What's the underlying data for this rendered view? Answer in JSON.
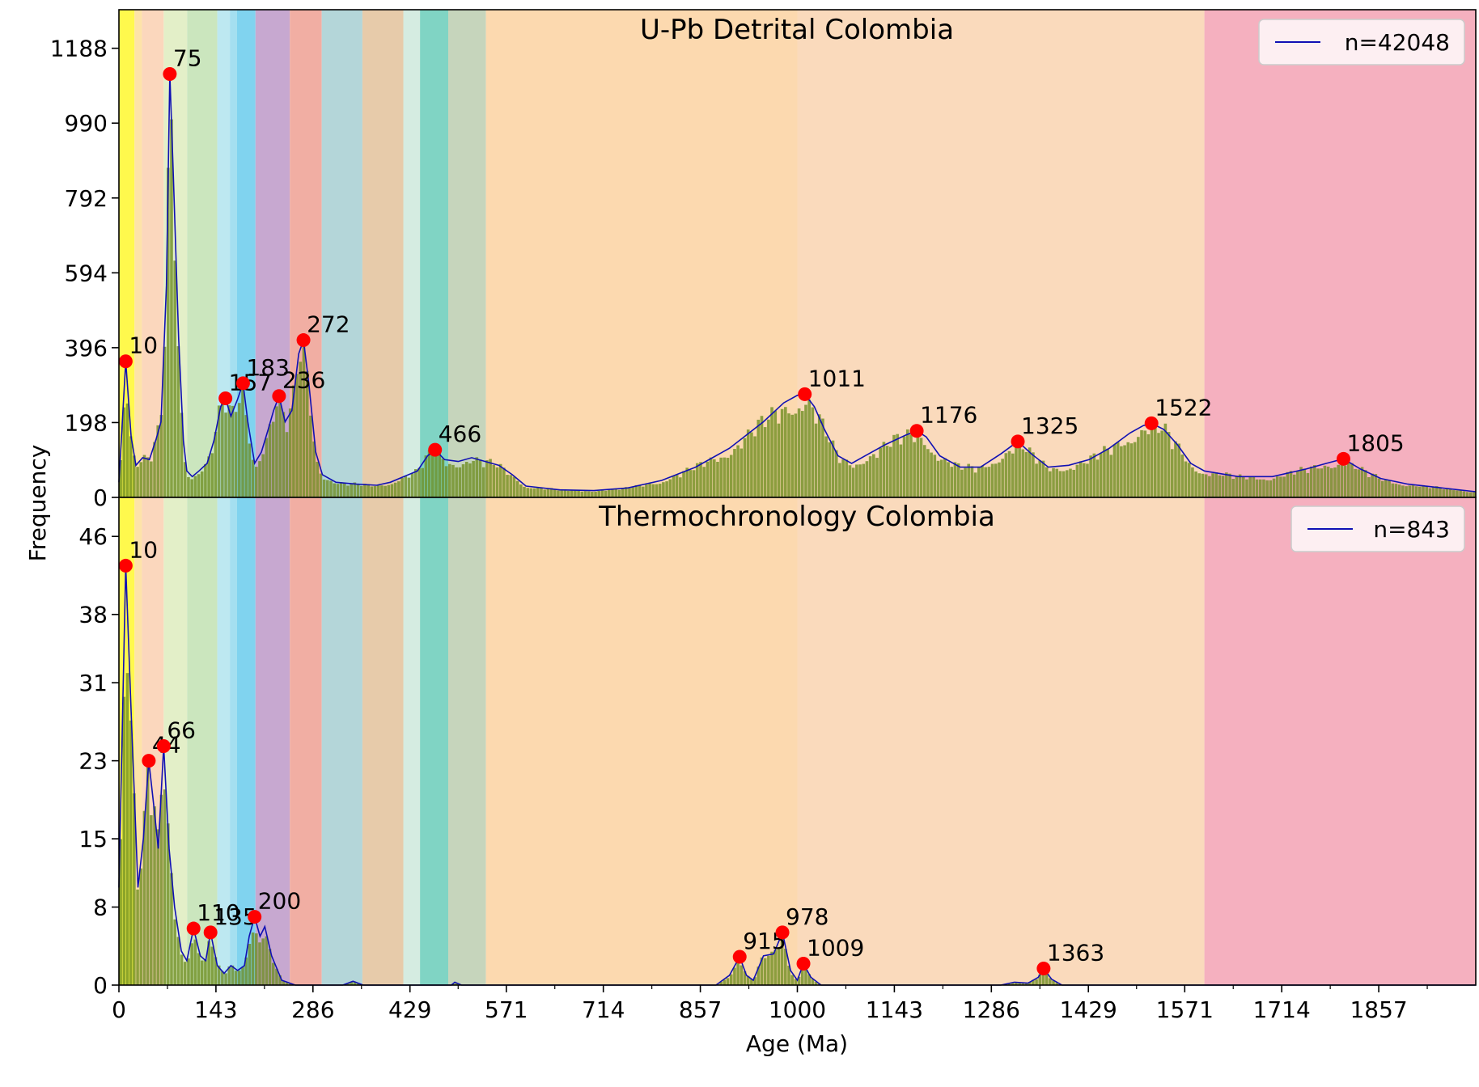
{
  "figure": {
    "xlabel": "Age (Ma)",
    "ylabel": "Frequency",
    "x_ticks": [
      0,
      143,
      286,
      429,
      571,
      714,
      857,
      1000,
      1143,
      1286,
      1429,
      1571,
      1714,
      1857
    ],
    "xlim": [
      0,
      2000
    ]
  },
  "bands": [
    {
      "x0": 0,
      "x1": 23,
      "color": "#fff94d"
    },
    {
      "x0": 23,
      "x1": 33.9,
      "color": "#fde3a8"
    },
    {
      "x0": 33.9,
      "x1": 66,
      "color": "#fbd7bd"
    },
    {
      "x0": 66,
      "x1": 100.5,
      "color": "#e3efc8"
    },
    {
      "x0": 100.5,
      "x1": 145,
      "color": "#cbe6be"
    },
    {
      "x0": 145,
      "x1": 163.5,
      "color": "#bde8f1"
    },
    {
      "x0": 163.5,
      "x1": 174.1,
      "color": "#a4dff0"
    },
    {
      "x0": 174.1,
      "x1": 201.3,
      "color": "#80d3ef"
    },
    {
      "x0": 201.3,
      "x1": 251.9,
      "color": "#c7a8d0"
    },
    {
      "x0": 251.9,
      "x1": 298.9,
      "color": "#f1aea3"
    },
    {
      "x0": 298.9,
      "x1": 358.9,
      "color": "#b4d6d9"
    },
    {
      "x0": 358.9,
      "x1": 419.2,
      "color": "#e7cbaa"
    },
    {
      "x0": 419.2,
      "x1": 443.8,
      "color": "#d5ece1"
    },
    {
      "x0": 443.8,
      "x1": 485.4,
      "color": "#80d4c4"
    },
    {
      "x0": 485.4,
      "x1": 541,
      "color": "#c6d5bc"
    },
    {
      "x0": 541,
      "x1": 1000,
      "color": "#fcd9af"
    },
    {
      "x0": 1000,
      "x1": 1600,
      "color": "#fadabc"
    },
    {
      "x0": 1600,
      "x1": 2000,
      "color": "#f5b0bf"
    }
  ],
  "chart_data": [
    {
      "type": "bar",
      "title": "U-Pb Detrital Colombia",
      "ylim": [
        0,
        1290
      ],
      "y_ticks": [
        0,
        198,
        396,
        594,
        792,
        990,
        1188
      ],
      "legend": {
        "label": "n=42048",
        "placement": "top-right"
      },
      "colors": {
        "bar": "#6b8c1f",
        "kde": "#1010b4",
        "peak": "#ff0000"
      },
      "peaks": [
        {
          "x": 10,
          "y": 360,
          "label": "10"
        },
        {
          "x": 75,
          "y": 1120,
          "label": "75"
        },
        {
          "x": 157,
          "y": 262,
          "label": "157"
        },
        {
          "x": 183,
          "y": 302,
          "label": "183"
        },
        {
          "x": 236,
          "y": 268,
          "label": "236"
        },
        {
          "x": 272,
          "y": 416,
          "label": "272"
        },
        {
          "x": 466,
          "y": 126,
          "label": "466"
        },
        {
          "x": 1011,
          "y": 273,
          "label": "1011"
        },
        {
          "x": 1176,
          "y": 176,
          "label": "1176"
        },
        {
          "x": 1325,
          "y": 148,
          "label": "1325"
        },
        {
          "x": 1522,
          "y": 196,
          "label": "1522"
        },
        {
          "x": 1805,
          "y": 102,
          "label": "1805"
        }
      ],
      "kde_points": [
        [
          0,
          40
        ],
        [
          10,
          360
        ],
        [
          18,
          160
        ],
        [
          25,
          85
        ],
        [
          35,
          105
        ],
        [
          45,
          100
        ],
        [
          55,
          155
        ],
        [
          62,
          200
        ],
        [
          70,
          560
        ],
        [
          75,
          1120
        ],
        [
          80,
          860
        ],
        [
          88,
          420
        ],
        [
          95,
          150
        ],
        [
          100,
          70
        ],
        [
          108,
          55
        ],
        [
          118,
          70
        ],
        [
          130,
          90
        ],
        [
          140,
          150
        ],
        [
          150,
          240
        ],
        [
          157,
          262
        ],
        [
          165,
          215
        ],
        [
          175,
          260
        ],
        [
          183,
          302
        ],
        [
          190,
          200
        ],
        [
          200,
          90
        ],
        [
          210,
          120
        ],
        [
          220,
          180
        ],
        [
          228,
          230
        ],
        [
          236,
          268
        ],
        [
          245,
          200
        ],
        [
          255,
          230
        ],
        [
          265,
          380
        ],
        [
          272,
          416
        ],
        [
          280,
          300
        ],
        [
          290,
          120
        ],
        [
          300,
          60
        ],
        [
          320,
          40
        ],
        [
          350,
          35
        ],
        [
          380,
          32
        ],
        [
          400,
          40
        ],
        [
          420,
          55
        ],
        [
          440,
          70
        ],
        [
          455,
          110
        ],
        [
          466,
          126
        ],
        [
          480,
          100
        ],
        [
          500,
          95
        ],
        [
          520,
          105
        ],
        [
          540,
          95
        ],
        [
          560,
          85
        ],
        [
          580,
          60
        ],
        [
          600,
          30
        ],
        [
          650,
          20
        ],
        [
          700,
          18
        ],
        [
          750,
          25
        ],
        [
          800,
          45
        ],
        [
          850,
          80
        ],
        [
          900,
          130
        ],
        [
          950,
          200
        ],
        [
          980,
          250
        ],
        [
          1000,
          270
        ],
        [
          1011,
          273
        ],
        [
          1025,
          240
        ],
        [
          1040,
          180
        ],
        [
          1060,
          110
        ],
        [
          1080,
          90
        ],
        [
          1100,
          110
        ],
        [
          1130,
          140
        ],
        [
          1160,
          165
        ],
        [
          1176,
          176
        ],
        [
          1190,
          160
        ],
        [
          1210,
          110
        ],
        [
          1240,
          80
        ],
        [
          1270,
          80
        ],
        [
          1300,
          115
        ],
        [
          1325,
          148
        ],
        [
          1345,
          115
        ],
        [
          1370,
          80
        ],
        [
          1400,
          85
        ],
        [
          1430,
          100
        ],
        [
          1460,
          130
        ],
        [
          1490,
          170
        ],
        [
          1510,
          190
        ],
        [
          1522,
          196
        ],
        [
          1540,
          180
        ],
        [
          1560,
          140
        ],
        [
          1580,
          90
        ],
        [
          1600,
          70
        ],
        [
          1650,
          55
        ],
        [
          1700,
          55
        ],
        [
          1750,
          75
        ],
        [
          1780,
          90
        ],
        [
          1805,
          102
        ],
        [
          1830,
          75
        ],
        [
          1860,
          50
        ],
        [
          1900,
          35
        ],
        [
          1950,
          25
        ],
        [
          2000,
          15
        ]
      ]
    },
    {
      "type": "bar",
      "title": "Thermochronology Colombia",
      "ylim": [
        0,
        50
      ],
      "y_ticks": [
        0,
        8,
        15,
        23,
        31,
        38,
        46
      ],
      "legend": {
        "label": "n=843",
        "placement": "top-right"
      },
      "colors": {
        "bar": "#6b8c1f",
        "kde": "#1010b4",
        "peak": "#ff0000"
      },
      "peaks": [
        {
          "x": 10,
          "y": 43,
          "label": "10"
        },
        {
          "x": 44,
          "y": 23,
          "label": "44"
        },
        {
          "x": 66,
          "y": 24.5,
          "label": "66"
        },
        {
          "x": 110,
          "y": 5.8,
          "label": "110"
        },
        {
          "x": 135,
          "y": 5.4,
          "label": "135"
        },
        {
          "x": 200,
          "y": 7,
          "label": "200"
        },
        {
          "x": 915,
          "y": 2.9,
          "label": "915"
        },
        {
          "x": 978,
          "y": 5.4,
          "label": "978"
        },
        {
          "x": 1009,
          "y": 2.2,
          "label": "1009"
        },
        {
          "x": 1363,
          "y": 1.7,
          "label": "1363"
        }
      ],
      "kde_points": [
        [
          0,
          10
        ],
        [
          10,
          43
        ],
        [
          18,
          28
        ],
        [
          28,
          10
        ],
        [
          36,
          15
        ],
        [
          44,
          23
        ],
        [
          52,
          18
        ],
        [
          58,
          14
        ],
        [
          66,
          24.5
        ],
        [
          74,
          14
        ],
        [
          82,
          8
        ],
        [
          92,
          3.5
        ],
        [
          100,
          2.5
        ],
        [
          110,
          5.8
        ],
        [
          120,
          3
        ],
        [
          128,
          2.5
        ],
        [
          135,
          5.4
        ],
        [
          145,
          2
        ],
        [
          155,
          1.2
        ],
        [
          165,
          2
        ],
        [
          175,
          1.5
        ],
        [
          185,
          2
        ],
        [
          192,
          5
        ],
        [
          200,
          7
        ],
        [
          208,
          5
        ],
        [
          215,
          6
        ],
        [
          225,
          3
        ],
        [
          240,
          0.5
        ],
        [
          260,
          0
        ],
        [
          330,
          0
        ],
        [
          345,
          0.4
        ],
        [
          360,
          0
        ],
        [
          490,
          0
        ],
        [
          495,
          0.3
        ],
        [
          505,
          0
        ],
        [
          880,
          0
        ],
        [
          900,
          1
        ],
        [
          915,
          2.9
        ],
        [
          925,
          1
        ],
        [
          935,
          0.5
        ],
        [
          950,
          3
        ],
        [
          965,
          3.2
        ],
        [
          978,
          5.4
        ],
        [
          990,
          1.5
        ],
        [
          1000,
          0.5
        ],
        [
          1009,
          2.2
        ],
        [
          1020,
          0.8
        ],
        [
          1035,
          0
        ],
        [
          1300,
          0
        ],
        [
          1320,
          0.3
        ],
        [
          1340,
          0.2
        ],
        [
          1355,
          0.8
        ],
        [
          1363,
          1.7
        ],
        [
          1375,
          0.6
        ],
        [
          1390,
          0
        ],
        [
          2000,
          0
        ]
      ]
    }
  ]
}
